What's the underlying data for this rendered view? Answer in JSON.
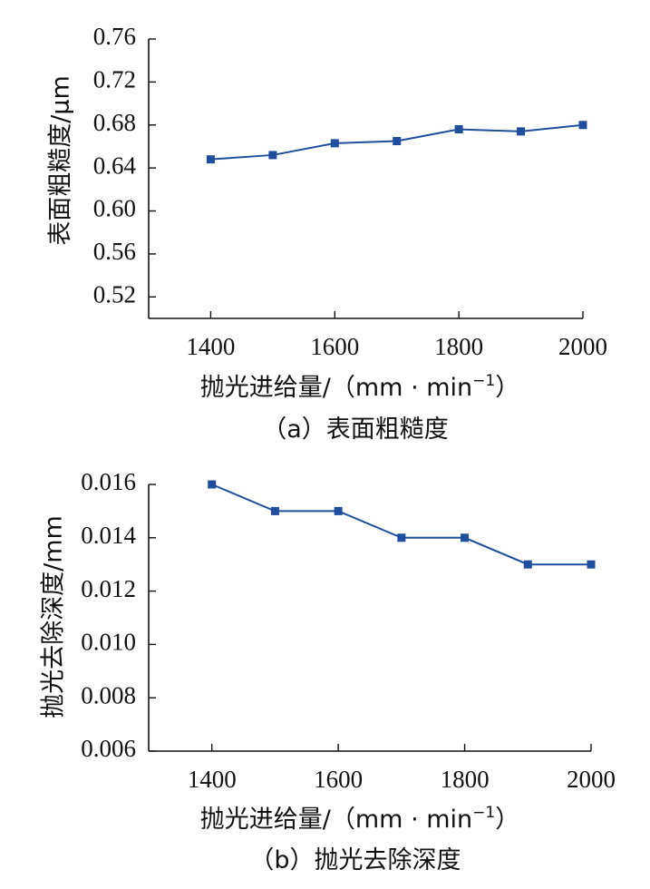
{
  "chart_data": [
    {
      "type": "line",
      "title": "",
      "caption": "（a）表面粗糙度",
      "xlabel": {
        "main": "抛光进给量/（mm · min",
        "sup": "−1",
        "close": "）"
      },
      "ylabel": "表面粗糙度/μm",
      "x": [
        1400,
        1500,
        1600,
        1700,
        1800,
        1900,
        2000
      ],
      "series": [
        {
          "values": [
            0.648,
            0.652,
            0.663,
            0.665,
            0.676,
            0.674,
            0.68
          ],
          "color": "#1f4e9c",
          "marker": "square"
        }
      ],
      "xticks": [
        1400,
        1600,
        1800,
        2000
      ],
      "xtick_labels": [
        "1400",
        "1600",
        "1800",
        "2000"
      ],
      "xlim": [
        1300,
        2000
      ],
      "yticks": [
        0.52,
        0.56,
        0.6,
        0.64,
        0.68,
        0.72,
        0.76
      ],
      "ytick_labels": [
        "0.52",
        "0.56",
        "0.60",
        "0.64",
        "0.68",
        "0.72",
        "0.76"
      ],
      "ylim": [
        0.5,
        0.76
      ],
      "grid": false
    },
    {
      "type": "line",
      "title": "",
      "caption": "（b）抛光去除深度",
      "xlabel": {
        "main": "抛光进给量/（mm · min",
        "sup": "−1",
        "close": "）"
      },
      "ylabel": "抛光去除深度/mm",
      "x": [
        1400,
        1500,
        1600,
        1700,
        1800,
        1900,
        2000
      ],
      "series": [
        {
          "values": [
            0.016,
            0.015,
            0.015,
            0.014,
            0.014,
            0.013,
            0.013
          ],
          "color": "#1f4e9c",
          "marker": "square"
        }
      ],
      "xticks": [
        1400,
        1600,
        1800,
        2000
      ],
      "xtick_labels": [
        "1400",
        "1600",
        "1800",
        "2000"
      ],
      "xlim": [
        1300,
        2000
      ],
      "yticks": [
        0.006,
        0.008,
        0.01,
        0.012,
        0.014,
        0.016
      ],
      "ytick_labels": [
        "0.006",
        "0.008",
        "0.010",
        "0.012",
        "0.014",
        "0.016"
      ],
      "ylim": [
        0.006,
        0.016
      ],
      "grid": false
    }
  ]
}
